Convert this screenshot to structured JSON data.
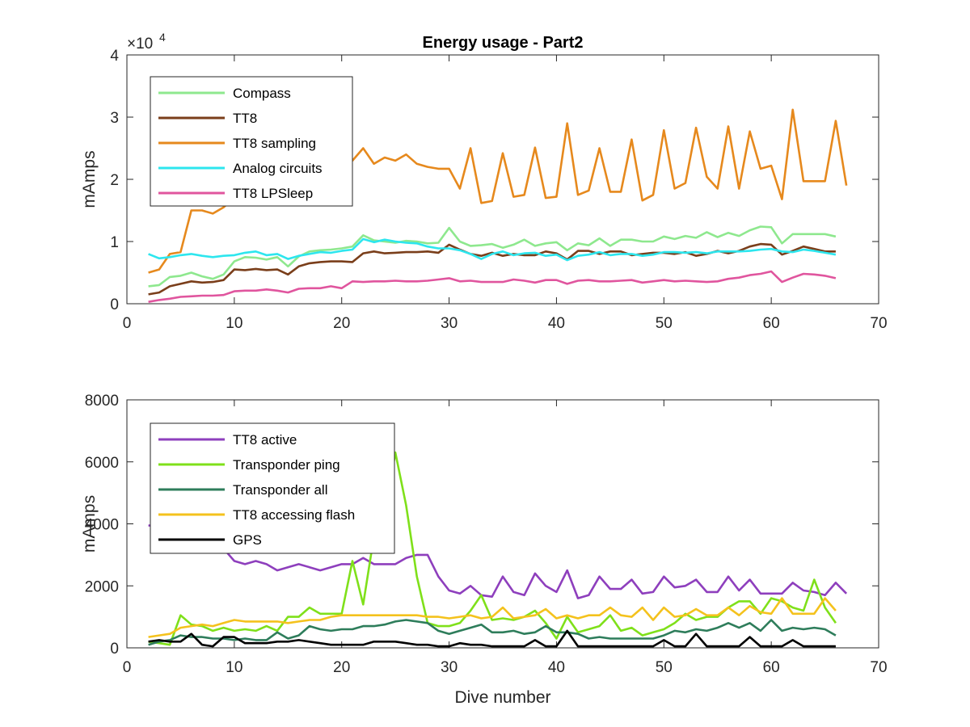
{
  "chart_data": [
    {
      "type": "line",
      "title": "Energy usage - Part2",
      "xlabel": "",
      "ylabel": "mAmps",
      "y_exponent_label": "×10",
      "y_exponent_power": "4",
      "xlim": [
        0,
        70
      ],
      "ylim": [
        0,
        40000
      ],
      "x_ticks": [
        0,
        10,
        20,
        30,
        40,
        50,
        60,
        70
      ],
      "y_ticks": [
        0,
        10000,
        20000,
        30000,
        40000
      ],
      "y_tick_labels": [
        "0",
        "1",
        "2",
        "3",
        "4"
      ],
      "legend_position": "upper-left",
      "grid": false,
      "x_start": 2,
      "series": [
        {
          "name": "Compass",
          "color": "#8ee88e",
          "values": [
            2800,
            3000,
            4300,
            4500,
            5000,
            4400,
            4000,
            4700,
            6800,
            7500,
            7400,
            7100,
            7500,
            6000,
            7600,
            8400,
            8600,
            8700,
            8900,
            9200,
            11000,
            10200,
            10000,
            9800,
            10100,
            10000,
            9700,
            9800,
            12200,
            10000,
            9300,
            9400,
            9600,
            9000,
            9500,
            10300,
            9300,
            9700,
            9900,
            8600,
            9700,
            9400,
            10500,
            9300,
            10300,
            10300,
            10000,
            10000,
            10800,
            10400,
            10900,
            10600,
            11500,
            10700,
            11400,
            10900,
            11800,
            12400,
            12300,
            9700,
            11200,
            11200,
            11200,
            11200,
            10800
          ]
        },
        {
          "name": "TT8",
          "color": "#7a3e1a",
          "values": [
            1500,
            1800,
            2800,
            3200,
            3600,
            3400,
            3500,
            3800,
            5500,
            5400,
            5600,
            5400,
            5500,
            4700,
            6000,
            6500,
            6700,
            6800,
            6800,
            6700,
            8100,
            8400,
            8100,
            8200,
            8300,
            8300,
            8400,
            8200,
            9500,
            8700,
            8000,
            7700,
            8200,
            7700,
            8000,
            7800,
            7800,
            8400,
            8100,
            7100,
            8500,
            8500,
            8000,
            8400,
            8400,
            7800,
            8000,
            8200,
            8200,
            8000,
            8300,
            7700,
            8000,
            8500,
            8100,
            8500,
            9200,
            9600,
            9500,
            7900,
            8500,
            9200,
            8800,
            8400,
            8400
          ]
        },
        {
          "name": "TT8 sampling",
          "color": "#e6891d",
          "values": [
            5000,
            5500,
            8000,
            8300,
            15000,
            15000,
            14500,
            15500,
            17000,
            17000,
            17500,
            18000,
            17000,
            17000,
            18000,
            19000,
            20000,
            21000,
            22000,
            23000,
            25000,
            22500,
            23500,
            23000,
            24000,
            22500,
            22000,
            21700,
            21700,
            18500,
            25000,
            16200,
            16500,
            24200,
            17200,
            17500,
            25100,
            17000,
            17200,
            29000,
            17500,
            18200,
            25000,
            18000,
            18000,
            26400,
            16600,
            17500,
            27900,
            18500,
            19400,
            28300,
            20400,
            18500,
            28500,
            18500,
            27700,
            21700,
            22200,
            16800,
            31200,
            19700,
            19700,
            19700,
            29400,
            19000
          ]
        },
        {
          "name": "Analog circuits",
          "color": "#2de6ee",
          "values": [
            8000,
            7300,
            7500,
            7800,
            8000,
            7700,
            7500,
            7700,
            7800,
            8200,
            8400,
            7800,
            8000,
            7200,
            7700,
            8000,
            8300,
            8200,
            8500,
            8700,
            10400,
            9900,
            10300,
            10000,
            9800,
            9700,
            9200,
            8900,
            8900,
            8600,
            8000,
            7200,
            8000,
            8400,
            7800,
            8100,
            8200,
            7700,
            7900,
            7000,
            7700,
            7900,
            8300,
            7800,
            8000,
            8000,
            7700,
            7900,
            8300,
            8300,
            8200,
            8300,
            8100,
            8400,
            8400,
            8400,
            8500,
            8700,
            8800,
            8400,
            8300,
            8700,
            8500,
            8200,
            7900
          ]
        },
        {
          "name": "TT8 LPSleep",
          "color": "#e0559e",
          "values": [
            300,
            600,
            800,
            1100,
            1200,
            1300,
            1300,
            1400,
            2000,
            2100,
            2100,
            2300,
            2100,
            1800,
            2400,
            2500,
            2500,
            2800,
            2500,
            3600,
            3500,
            3600,
            3600,
            3700,
            3600,
            3600,
            3700,
            3900,
            4100,
            3600,
            3700,
            3500,
            3500,
            3500,
            3900,
            3700,
            3400,
            3800,
            3800,
            3200,
            3700,
            3800,
            3600,
            3600,
            3700,
            3800,
            3400,
            3600,
            3800,
            3600,
            3700,
            3600,
            3500,
            3600,
            4000,
            4200,
            4600,
            4800,
            5200,
            3500,
            4200,
            4800,
            4700,
            4500,
            4100
          ]
        }
      ]
    },
    {
      "type": "line",
      "title": "",
      "xlabel": "Dive number",
      "ylabel": "mAmps",
      "xlim": [
        0,
        70
      ],
      "ylim": [
        0,
        8000
      ],
      "x_ticks": [
        0,
        10,
        20,
        30,
        40,
        50,
        60,
        70
      ],
      "y_ticks": [
        0,
        2000,
        4000,
        6000,
        8000
      ],
      "y_tick_labels": [
        "0",
        "2000",
        "4000",
        "6000",
        "8000"
      ],
      "legend_position": "upper-left",
      "grid": false,
      "x_start": 2,
      "series": [
        {
          "name": "TT8 active",
          "color": "#8e3fbd",
          "values": [
            3950,
            3900,
            3700,
            3600,
            3500,
            3400,
            3300,
            3200,
            2800,
            2700,
            2800,
            2700,
            2500,
            2600,
            2700,
            2600,
            2500,
            2600,
            2700,
            2700,
            2900,
            2700,
            2700,
            2700,
            2900,
            3000,
            3000,
            2300,
            1850,
            1750,
            2000,
            1700,
            1650,
            2300,
            1800,
            1700,
            2400,
            2000,
            1800,
            2500,
            1600,
            1700,
            2300,
            1900,
            1900,
            2200,
            1750,
            1800,
            2300,
            1950,
            2000,
            2200,
            1800,
            1800,
            2300,
            1850,
            2200,
            1750,
            1750,
            1750,
            2100,
            1850,
            1800,
            1700,
            2100,
            1750
          ]
        },
        {
          "name": "Transponder ping",
          "color": "#7fe01a",
          "values": [
            200,
            150,
            100,
            1050,
            750,
            700,
            550,
            650,
            550,
            600,
            550,
            700,
            550,
            1000,
            1000,
            1300,
            1100,
            1100,
            1100,
            2800,
            1400,
            3600,
            4200,
            6300,
            4600,
            2300,
            800,
            700,
            700,
            800,
            1200,
            1700,
            900,
            950,
            900,
            1000,
            1200,
            800,
            300,
            1000,
            500,
            600,
            700,
            1050,
            550,
            650,
            400,
            500,
            600,
            800,
            1100,
            900,
            1000,
            1000,
            1300,
            1500,
            1500,
            1100,
            1600,
            1500,
            1300,
            1200,
            2200,
            1300,
            800
          ]
        },
        {
          "name": "Transponder all",
          "color": "#2e7d5b",
          "values": [
            100,
            200,
            250,
            400,
            350,
            350,
            300,
            300,
            250,
            300,
            250,
            250,
            500,
            300,
            400,
            700,
            600,
            550,
            600,
            600,
            700,
            700,
            750,
            850,
            900,
            850,
            800,
            550,
            450,
            550,
            650,
            750,
            500,
            500,
            550,
            450,
            500,
            700,
            500,
            500,
            450,
            300,
            350,
            300,
            300,
            300,
            300,
            300,
            400,
            550,
            500,
            600,
            550,
            650,
            800,
            650,
            800,
            550,
            900,
            550,
            650,
            600,
            650,
            600,
            400
          ]
        },
        {
          "name": "TT8 accessing flash",
          "color": "#f4c21d",
          "values": [
            350,
            400,
            450,
            650,
            700,
            750,
            700,
            800,
            900,
            850,
            850,
            850,
            850,
            800,
            850,
            900,
            900,
            1000,
            1050,
            1050,
            1050,
            1050,
            1050,
            1050,
            1050,
            1050,
            1000,
            1000,
            950,
            1000,
            1050,
            950,
            1000,
            1300,
            950,
            1000,
            1050,
            1250,
            950,
            1050,
            950,
            1050,
            1050,
            1300,
            1050,
            1000,
            1300,
            900,
            1300,
            1000,
            1050,
            1250,
            1050,
            1050,
            1300,
            1050,
            1350,
            1150,
            1100,
            1600,
            1100,
            1100,
            1100,
            1600,
            1200
          ]
        },
        {
          "name": "GPS",
          "color": "#000000",
          "values": [
            200,
            250,
            200,
            200,
            450,
            100,
            50,
            350,
            350,
            150,
            150,
            150,
            200,
            200,
            250,
            200,
            150,
            100,
            100,
            100,
            100,
            200,
            200,
            200,
            150,
            100,
            100,
            50,
            50,
            150,
            100,
            100,
            50,
            50,
            50,
            50,
            250,
            50,
            50,
            550,
            50,
            50,
            50,
            50,
            50,
            50,
            50,
            50,
            250,
            50,
            50,
            450,
            50,
            50,
            50,
            50,
            350,
            50,
            50,
            50,
            250,
            50,
            50,
            50,
            50
          ]
        }
      ]
    }
  ]
}
